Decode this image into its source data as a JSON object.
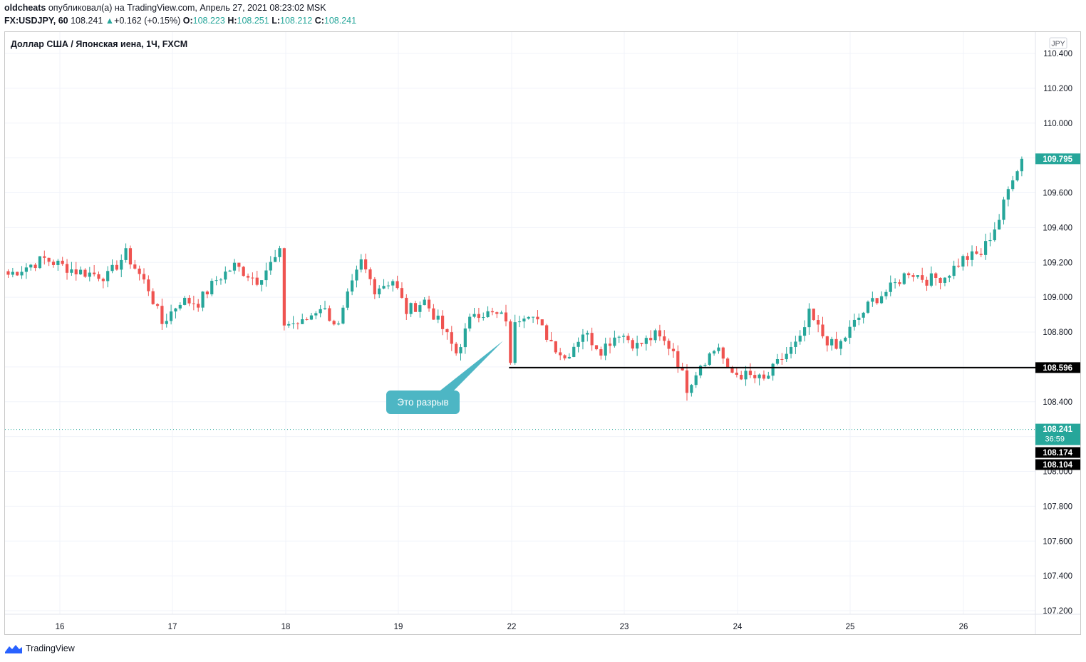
{
  "header": {
    "user": "oldcheats",
    "published_text": "опубликовал(а) на TradingView.com, Апрель 27, 2021 08:23:02 MSK",
    "symbol": "FX:USDJPY, 60",
    "last": "108.241",
    "change": "+0.162 (+0.15%)",
    "open_label": "O:",
    "open": "108.223",
    "high_label": "H:",
    "high": "108.251",
    "low_label": "L:",
    "low": "108.212",
    "close_label": "C:",
    "close": "108.241"
  },
  "footer": {
    "brand": "TradingView"
  },
  "colors": {
    "up": "#26a69a",
    "down": "#ef5350",
    "grid": "#f0f3fa",
    "axis_text": "#131722",
    "callout": "#4db6c4"
  },
  "chart_data": {
    "type": "candlestick",
    "title": "Доллар США / Японская иена, 1Ч, FXCM",
    "currency": "JPY",
    "ylim": [
      107.1,
      110.45
    ],
    "y_ticks": [
      "110.400",
      "110.200",
      "110.000",
      "109.800",
      "109.600",
      "109.400",
      "109.200",
      "109.000",
      "108.800",
      "108.600",
      "108.400",
      "108.200",
      "108.000",
      "107.800",
      "107.600",
      "107.400",
      "107.200"
    ],
    "x_ticks": [
      "16",
      "17",
      "18",
      "19",
      "22",
      "23",
      "24",
      "25",
      "26"
    ],
    "grid": true,
    "anchors": [
      {
        "i": 0,
        "v": 109.13
      },
      {
        "i": 8,
        "v": 109.22
      },
      {
        "i": 15,
        "v": 109.15
      },
      {
        "i": 22,
        "v": 109.12
      },
      {
        "i": 26,
        "v": 109.25
      },
      {
        "i": 31,
        "v": 109.05
      },
      {
        "i": 34,
        "v": 108.85
      },
      {
        "i": 38,
        "v": 108.98
      },
      {
        "i": 42,
        "v": 108.97
      },
      {
        "i": 46,
        "v": 109.1
      },
      {
        "i": 50,
        "v": 109.18
      },
      {
        "i": 55,
        "v": 109.1
      },
      {
        "i": 60,
        "v": 109.25
      },
      {
        "i": 61,
        "v": 108.85
      },
      {
        "i": 65,
        "v": 108.85
      },
      {
        "i": 69,
        "v": 108.95
      },
      {
        "i": 73,
        "v": 108.83
      },
      {
        "i": 75,
        "v": 109.0
      },
      {
        "i": 78,
        "v": 109.2
      },
      {
        "i": 81,
        "v": 109.05
      },
      {
        "i": 85,
        "v": 109.1
      },
      {
        "i": 88,
        "v": 108.92
      },
      {
        "i": 92,
        "v": 108.98
      },
      {
        "i": 96,
        "v": 108.82
      },
      {
        "i": 99,
        "v": 108.68
      },
      {
        "i": 103,
        "v": 108.92
      },
      {
        "i": 107,
        "v": 108.9
      },
      {
        "i": 110,
        "v": 108.88
      },
      {
        "i": 111,
        "v": 108.6
      },
      {
        "i": 112,
        "v": 108.88
      },
      {
        "i": 115,
        "v": 108.92
      },
      {
        "i": 119,
        "v": 108.78
      },
      {
        "i": 123,
        "v": 108.65
      },
      {
        "i": 127,
        "v": 108.8
      },
      {
        "i": 131,
        "v": 108.7
      },
      {
        "i": 135,
        "v": 108.8
      },
      {
        "i": 139,
        "v": 108.72
      },
      {
        "i": 143,
        "v": 108.78
      },
      {
        "i": 147,
        "v": 108.7
      },
      {
        "i": 150,
        "v": 108.48
      },
      {
        "i": 153,
        "v": 108.62
      },
      {
        "i": 157,
        "v": 108.72
      },
      {
        "i": 159,
        "v": 108.57
      },
      {
        "i": 163,
        "v": 108.55
      },
      {
        "i": 167,
        "v": 108.52
      },
      {
        "i": 171,
        "v": 108.65
      },
      {
        "i": 175,
        "v": 108.75
      },
      {
        "i": 177,
        "v": 108.9
      },
      {
        "i": 180,
        "v": 108.78
      },
      {
        "i": 183,
        "v": 108.7
      },
      {
        "i": 187,
        "v": 108.85
      },
      {
        "i": 191,
        "v": 108.98
      },
      {
        "i": 195,
        "v": 109.05
      },
      {
        "i": 199,
        "v": 109.15
      },
      {
        "i": 203,
        "v": 109.1
      },
      {
        "i": 207,
        "v": 109.12
      },
      {
        "i": 211,
        "v": 109.22
      },
      {
        "i": 215,
        "v": 109.25
      },
      {
        "i": 219,
        "v": 109.45
      },
      {
        "i": 222,
        "v": 109.7
      },
      {
        "i": 224,
        "v": 109.795
      }
    ],
    "last_price": 108.241,
    "countdown": "36:59",
    "price_labels": [
      {
        "value": 109.795,
        "text": "109.795",
        "style": "green"
      },
      {
        "value": 108.596,
        "text": "108.596",
        "style": "black"
      },
      {
        "value": 108.241,
        "text": "108.241",
        "style": "green"
      },
      {
        "value": 108.174,
        "text": "108.174",
        "style": "black"
      },
      {
        "value": 108.104,
        "text": "108.104",
        "style": "black"
      }
    ],
    "horizontal_line": {
      "value": 108.596,
      "from_index": 111
    },
    "annotation": {
      "text": "Это разрыв",
      "target_index": 110,
      "target_value": 108.75
    }
  }
}
